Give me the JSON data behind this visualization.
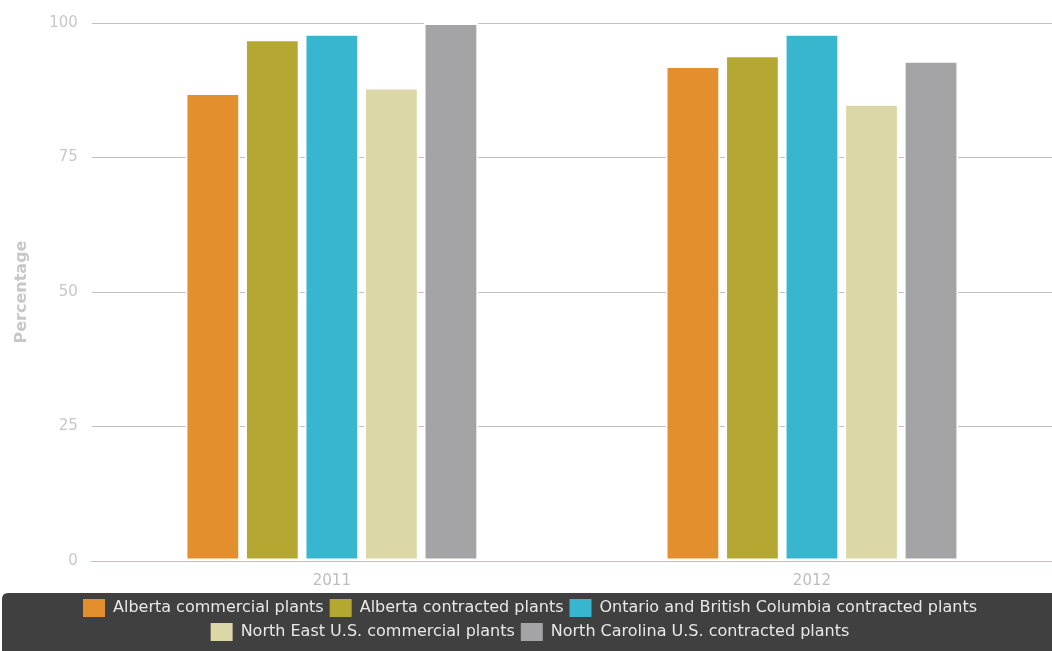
{
  "chart_data": {
    "type": "bar",
    "ylabel": "Percentage",
    "categories": [
      "2011",
      "2012"
    ],
    "series": [
      {
        "name": "Alberta commercial plants",
        "color": "#e38f2d",
        "values": [
          87,
          92
        ]
      },
      {
        "name": "Alberta contracted plants",
        "color": "#b4a832",
        "values": [
          97,
          94
        ]
      },
      {
        "name": "Ontario and British Columbia contracted plants",
        "color": "#38b6d0",
        "values": [
          98,
          98
        ]
      },
      {
        "name": "North East U.S. commercial plants",
        "color": "#dcd7a6",
        "values": [
          88,
          85
        ]
      },
      {
        "name": "North Carolina U.S. contracted plants",
        "color": "#a4a4a6",
        "values": [
          100,
          93
        ]
      }
    ],
    "ylim": [
      0,
      100
    ],
    "yticks": [
      0,
      25,
      50,
      75,
      100
    ],
    "grid": "y",
    "legend": "bottom"
  }
}
